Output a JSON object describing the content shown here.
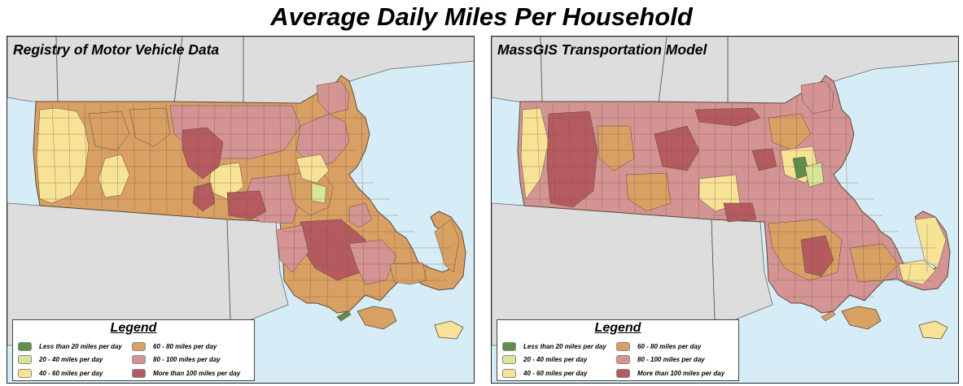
{
  "title": "Average Daily Miles Per Household",
  "panels": [
    {
      "title": "Registry of Motor Vehicle Data"
    },
    {
      "title": "MassGIS Transportation Model"
    }
  ],
  "legend": {
    "title": "Legend",
    "items": [
      {
        "label": "Less than 20 miles per day",
        "color": "#5f8f4a"
      },
      {
        "label": "20 - 40 miles per day",
        "color": "#d8e69a"
      },
      {
        "label": "40 - 60 miles per day",
        "color": "#f7e396"
      },
      {
        "label": "60 - 80 miles per day",
        "color": "#d9a064"
      },
      {
        "label": "80 - 100 miles per day",
        "color": "#d49494"
      },
      {
        "label": "More than 100 miles per day",
        "color": "#b55a5e"
      }
    ]
  },
  "colors": {
    "water": "#d6edf8",
    "neighbor_land": "#dddddd",
    "boundary": "#5a4a3a"
  }
}
